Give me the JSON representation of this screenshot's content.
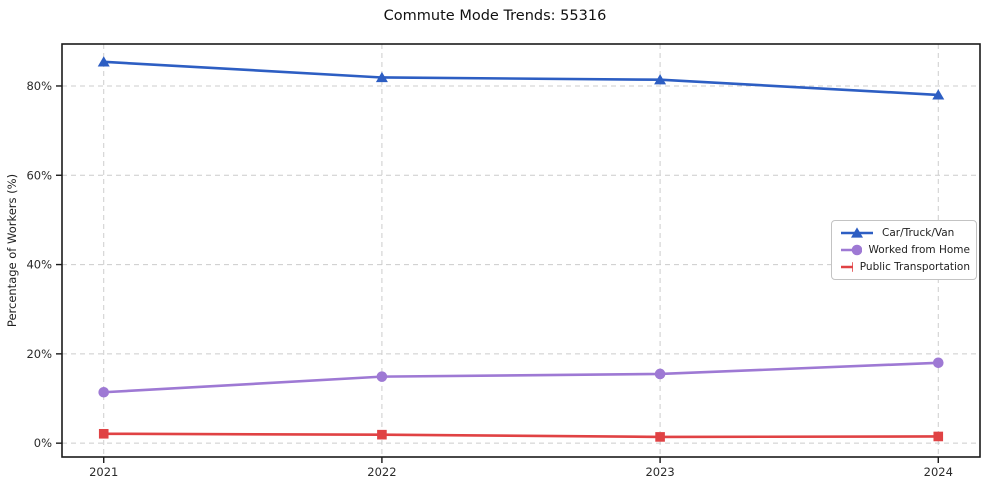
{
  "chart_data": {
    "type": "line",
    "title": "Commute Mode Trends: 55316",
    "xlabel": "",
    "ylabel": "Percentage of Workers (%)",
    "categories": [
      "2021",
      "2022",
      "2023",
      "2024"
    ],
    "x": [
      2021,
      2022,
      2023,
      2024
    ],
    "series": [
      {
        "name": "Car/Truck/Van",
        "color": "#2d5ec3",
        "marker": "triangle-up",
        "values": [
          85.4,
          81.9,
          81.4,
          78.0
        ]
      },
      {
        "name": "Worked from Home",
        "color": "#9e79d4",
        "marker": "circle",
        "values": [
          11.4,
          14.9,
          15.5,
          18.0
        ]
      },
      {
        "name": "Public Transportation",
        "color": "#e04244",
        "marker": "square",
        "values": [
          2.1,
          1.9,
          1.4,
          1.5
        ]
      }
    ],
    "yticks": {
      "values": [
        0,
        20,
        40,
        60,
        80
      ],
      "labels": [
        "0%",
        "20%",
        "40%",
        "60%",
        "80%"
      ]
    },
    "xlim": [
      2020.85,
      2024.15
    ],
    "ylim": [
      -3.1,
      89.4
    ],
    "grid": "dashed",
    "grid_color": "#cccccc",
    "axis_color": "#1a1a1a",
    "legend_position": "center-right"
  }
}
